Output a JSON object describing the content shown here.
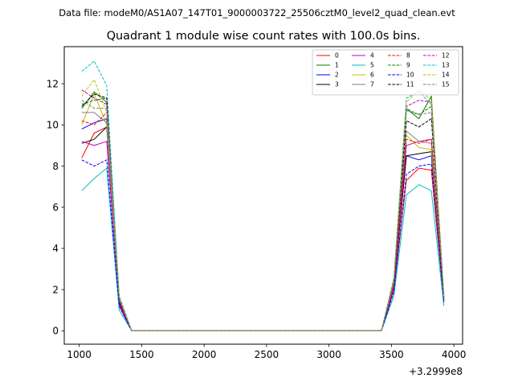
{
  "suptitle": "Data file: modeM0/AS1A07_147T01_9000003722_25506cztM0_level2_quad_clean.evt",
  "chart_data": {
    "type": "line",
    "title": "Quadrant 1 module wise count rates with 100.0s bins.",
    "xlabel": "",
    "ylabel": "",
    "x_offset_label": "+3.2999e8",
    "xlim": [
      880,
      4070
    ],
    "ylim": [
      -0.65,
      13.8
    ],
    "xticks": [
      1000,
      1500,
      2000,
      2500,
      3000,
      3500,
      4000
    ],
    "yticks": [
      0,
      2,
      4,
      6,
      8,
      10,
      12
    ],
    "legend_position": "top-right",
    "x": [
      1020,
      1120,
      1220,
      1320,
      1420,
      1520,
      1620,
      1720,
      1820,
      1920,
      2020,
      2120,
      2220,
      2320,
      2420,
      2520,
      2620,
      2720,
      2820,
      2920,
      3020,
      3120,
      3220,
      3320,
      3420,
      3520,
      3620,
      3720,
      3820,
      3920
    ],
    "series": [
      {
        "name": "0",
        "color": "#ff0000",
        "dash": false,
        "values": [
          8.4,
          9.6,
          9.9,
          1.2,
          0,
          0,
          0,
          0,
          0,
          0,
          0,
          0,
          0,
          0,
          0,
          0,
          0,
          0,
          0,
          0,
          0,
          0,
          0,
          0,
          0,
          2.0,
          7.3,
          7.9,
          7.8,
          1.4
        ]
      },
      {
        "name": "1",
        "color": "#008000",
        "dash": false,
        "values": [
          10.8,
          11.6,
          11.1,
          1.6,
          0,
          0,
          0,
          0,
          0,
          0,
          0,
          0,
          0,
          0,
          0,
          0,
          0,
          0,
          0,
          0,
          0,
          0,
          0,
          0,
          0,
          2.4,
          10.8,
          10.3,
          11.4,
          1.6
        ]
      },
      {
        "name": "2",
        "color": "#0000ff",
        "dash": false,
        "values": [
          9.8,
          10.1,
          10.3,
          1.5,
          0,
          0,
          0,
          0,
          0,
          0,
          0,
          0,
          0,
          0,
          0,
          0,
          0,
          0,
          0,
          0,
          0,
          0,
          0,
          0,
          0,
          2.2,
          8.5,
          8.3,
          8.5,
          1.5
        ]
      },
      {
        "name": "3",
        "color": "#000000",
        "dash": false,
        "values": [
          9.1,
          9.3,
          9.9,
          1.4,
          0,
          0,
          0,
          0,
          0,
          0,
          0,
          0,
          0,
          0,
          0,
          0,
          0,
          0,
          0,
          0,
          0,
          0,
          0,
          0,
          0,
          2.1,
          8.5,
          8.6,
          8.7,
          1.5
        ]
      },
      {
        "name": "4",
        "color": "#bf00bf",
        "dash": false,
        "values": [
          9.2,
          9.0,
          9.2,
          1.3,
          0,
          0,
          0,
          0,
          0,
          0,
          0,
          0,
          0,
          0,
          0,
          0,
          0,
          0,
          0,
          0,
          0,
          0,
          0,
          0,
          0,
          2.1,
          9.0,
          9.2,
          9.3,
          1.5
        ]
      },
      {
        "name": "5",
        "color": "#00bfbf",
        "dash": false,
        "values": [
          6.8,
          7.4,
          7.9,
          1.0,
          0,
          0,
          0,
          0,
          0,
          0,
          0,
          0,
          0,
          0,
          0,
          0,
          0,
          0,
          0,
          0,
          0,
          0,
          0,
          0,
          0,
          1.7,
          6.6,
          7.1,
          6.8,
          1.2
        ]
      },
      {
        "name": "6",
        "color": "#bfbf00",
        "dash": false,
        "values": [
          10.0,
          11.5,
          10.0,
          1.5,
          0,
          0,
          0,
          0,
          0,
          0,
          0,
          0,
          0,
          0,
          0,
          0,
          0,
          0,
          0,
          0,
          0,
          0,
          0,
          0,
          0,
          2.3,
          9.5,
          8.9,
          8.8,
          1.5
        ]
      },
      {
        "name": "7",
        "color": "#808080",
        "dash": false,
        "values": [
          10.6,
          10.6,
          10.1,
          1.5,
          0,
          0,
          0,
          0,
          0,
          0,
          0,
          0,
          0,
          0,
          0,
          0,
          0,
          0,
          0,
          0,
          0,
          0,
          0,
          0,
          0,
          2.3,
          9.7,
          9.2,
          9.1,
          1.5
        ]
      },
      {
        "name": "8",
        "color": "#ff0000",
        "dash": true,
        "values": [
          10.2,
          10.0,
          10.6,
          1.5,
          0,
          0,
          0,
          0,
          0,
          0,
          0,
          0,
          0,
          0,
          0,
          0,
          0,
          0,
          0,
          0,
          0,
          0,
          0,
          0,
          0,
          2.2,
          9.3,
          9.1,
          9.3,
          1.5
        ]
      },
      {
        "name": "9",
        "color": "#008000",
        "dash": true,
        "values": [
          11.0,
          11.2,
          11.3,
          1.6,
          0,
          0,
          0,
          0,
          0,
          0,
          0,
          0,
          0,
          0,
          0,
          0,
          0,
          0,
          0,
          0,
          0,
          0,
          0,
          0,
          0,
          2.4,
          10.7,
          10.5,
          10.9,
          1.6
        ]
      },
      {
        "name": "10",
        "color": "#0000ff",
        "dash": true,
        "values": [
          8.3,
          8.0,
          8.3,
          1.2,
          0,
          0,
          0,
          0,
          0,
          0,
          0,
          0,
          0,
          0,
          0,
          0,
          0,
          0,
          0,
          0,
          0,
          0,
          0,
          0,
          0,
          1.9,
          7.6,
          8.0,
          8.1,
          1.4
        ]
      },
      {
        "name": "11",
        "color": "#000000",
        "dash": true,
        "values": [
          10.9,
          11.5,
          11.3,
          1.6,
          0,
          0,
          0,
          0,
          0,
          0,
          0,
          0,
          0,
          0,
          0,
          0,
          0,
          0,
          0,
          0,
          0,
          0,
          0,
          0,
          0,
          2.4,
          10.2,
          9.9,
          10.3,
          1.6
        ]
      },
      {
        "name": "12",
        "color": "#bf00bf",
        "dash": true,
        "values": [
          11.7,
          11.3,
          11.0,
          1.6,
          0,
          0,
          0,
          0,
          0,
          0,
          0,
          0,
          0,
          0,
          0,
          0,
          0,
          0,
          0,
          0,
          0,
          0,
          0,
          0,
          0,
          2.5,
          10.9,
          11.2,
          11.1,
          1.6
        ]
      },
      {
        "name": "13",
        "color": "#00bfbf",
        "dash": true,
        "values": [
          12.6,
          13.1,
          11.9,
          1.7,
          0,
          0,
          0,
          0,
          0,
          0,
          0,
          0,
          0,
          0,
          0,
          0,
          0,
          0,
          0,
          0,
          0,
          0,
          0,
          0,
          0,
          2.6,
          11.3,
          11.6,
          11.0,
          1.7
        ]
      },
      {
        "name": "14",
        "color": "#bfbf00",
        "dash": true,
        "values": [
          11.4,
          12.2,
          10.6,
          1.6,
          0,
          0,
          0,
          0,
          0,
          0,
          0,
          0,
          0,
          0,
          0,
          0,
          0,
          0,
          0,
          0,
          0,
          0,
          0,
          0,
          0,
          2.5,
          11.1,
          11.7,
          11.2,
          1.6
        ]
      },
      {
        "name": "15",
        "color": "#808080",
        "dash": true,
        "values": [
          11.2,
          10.8,
          10.8,
          1.6,
          0,
          0,
          0,
          0,
          0,
          0,
          0,
          0,
          0,
          0,
          0,
          0,
          0,
          0,
          0,
          0,
          0,
          0,
          0,
          0,
          0,
          2.4,
          10.8,
          10.5,
          10.6,
          1.6
        ]
      }
    ]
  }
}
